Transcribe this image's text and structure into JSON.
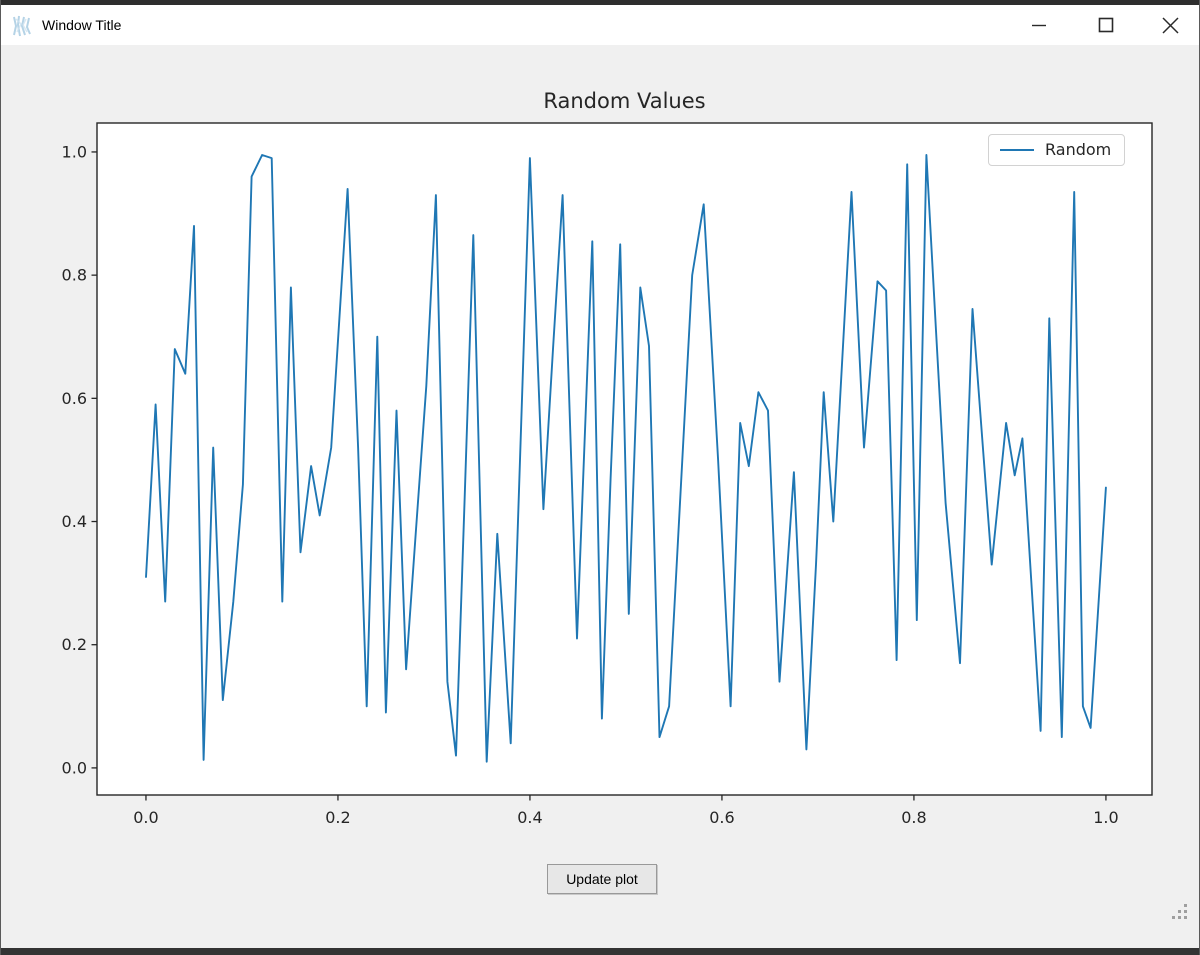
{
  "window": {
    "title": "Window Title",
    "icons": {
      "app": "tk-feather-icon",
      "minimize": "minimize-icon",
      "maximize": "maximize-icon",
      "close": "close-icon",
      "resize": "resize-grip-icon"
    }
  },
  "controls": {
    "update_button_label": "Update plot"
  },
  "colors": {
    "accent_line": "#1f77b4",
    "window_bg": "#f0f0f0",
    "titlebar_bg": "#ffffff",
    "axes_bg": "#ffffff",
    "chart_text": "#262626",
    "frame": "#2e2e2e"
  },
  "chart_data": {
    "type": "line",
    "title": "Random Values",
    "xlabel": "",
    "ylabel": "",
    "grid": false,
    "legend_position": "upper right",
    "line_color": "#1f77b4",
    "xlim": [
      -0.051,
      1.048
    ],
    "ylim": [
      -0.044,
      1.047
    ],
    "xticks": [
      0.0,
      0.2,
      0.4,
      0.6,
      0.8,
      1.0
    ],
    "yticks": [
      0.0,
      0.2,
      0.4,
      0.6,
      0.8,
      1.0
    ],
    "series": [
      {
        "name": "Random",
        "x": [
          0.0,
          0.01,
          0.02,
          0.03,
          0.041,
          0.05,
          0.06,
          0.07,
          0.08,
          0.091,
          0.101,
          0.11,
          0.121,
          0.131,
          0.142,
          0.151,
          0.161,
          0.172,
          0.181,
          0.193,
          0.21,
          0.221,
          0.23,
          0.241,
          0.25,
          0.261,
          0.271,
          0.281,
          0.292,
          0.302,
          0.314,
          0.323,
          0.332,
          0.341,
          0.355,
          0.366,
          0.38,
          0.4,
          0.414,
          0.424,
          0.434,
          0.449,
          0.465,
          0.475,
          0.484,
          0.494,
          0.503,
          0.515,
          0.524,
          0.535,
          0.545,
          0.569,
          0.581,
          0.596,
          0.609,
          0.619,
          0.628,
          0.638,
          0.648,
          0.66,
          0.675,
          0.688,
          0.698,
          0.706,
          0.716,
          0.735,
          0.748,
          0.762,
          0.771,
          0.782,
          0.793,
          0.803,
          0.813,
          0.823,
          0.833,
          0.848,
          0.861,
          0.881,
          0.896,
          0.905,
          0.913,
          0.932,
          0.941,
          0.954,
          0.967,
          0.976,
          0.984,
          1.0
        ],
        "values": [
          0.31,
          0.59,
          0.27,
          0.68,
          0.64,
          0.88,
          0.013,
          0.52,
          0.11,
          0.27,
          0.46,
          0.96,
          0.995,
          0.99,
          0.27,
          0.78,
          0.35,
          0.49,
          0.41,
          0.52,
          0.94,
          0.52,
          0.1,
          0.7,
          0.09,
          0.58,
          0.16,
          0.38,
          0.62,
          0.93,
          0.14,
          0.02,
          0.44,
          0.865,
          0.01,
          0.38,
          0.04,
          0.99,
          0.42,
          0.68,
          0.93,
          0.21,
          0.855,
          0.08,
          0.47,
          0.85,
          0.25,
          0.78,
          0.685,
          0.05,
          0.1,
          0.8,
          0.915,
          0.5,
          0.1,
          0.56,
          0.49,
          0.61,
          0.58,
          0.14,
          0.48,
          0.03,
          0.33,
          0.61,
          0.4,
          0.935,
          0.52,
          0.79,
          0.775,
          0.175,
          0.98,
          0.24,
          0.995,
          0.71,
          0.43,
          0.17,
          0.745,
          0.33,
          0.56,
          0.475,
          0.535,
          0.06,
          0.73,
          0.05,
          0.935,
          0.1,
          0.065,
          0.455
        ]
      }
    ]
  }
}
